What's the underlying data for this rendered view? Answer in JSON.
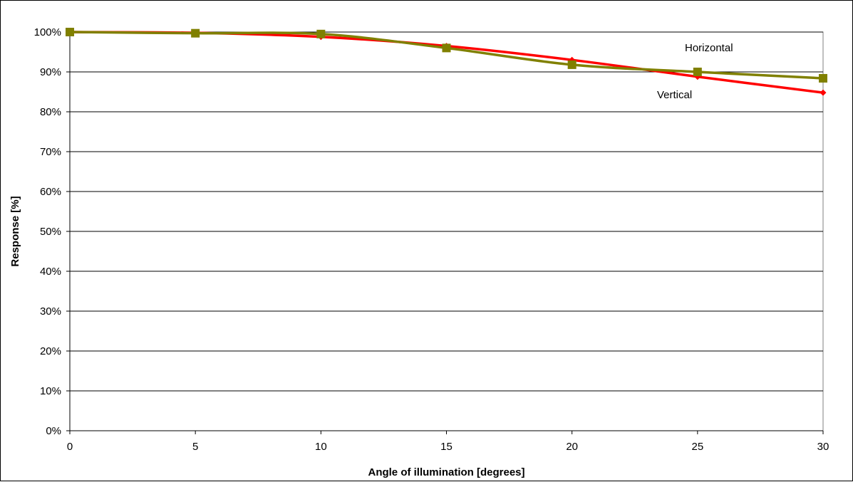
{
  "chart_data": {
    "type": "line",
    "xlabel": "Angle of illumination [degrees]",
    "ylabel": "Response [%]",
    "x": [
      0,
      5,
      10,
      15,
      20,
      25,
      30
    ],
    "xlim": [
      0,
      30
    ],
    "xticks": [
      "0",
      "5",
      "10",
      "15",
      "20",
      "25",
      "30"
    ],
    "ylim": [
      0,
      100
    ],
    "yticks": [
      "0%",
      "10%",
      "20%",
      "30%",
      "40%",
      "50%",
      "60%",
      "70%",
      "80%",
      "90%",
      "100%"
    ],
    "grid": "horizontal",
    "series": [
      {
        "name": "Vertical",
        "color": "#ff0000",
        "marker": "diamond",
        "values": [
          100,
          99.8,
          98.8,
          96.5,
          93,
          88.8,
          84.8
        ]
      },
      {
        "name": "Horizontal",
        "color": "#808000",
        "marker": "square",
        "values": [
          100,
          99.7,
          99.5,
          96,
          91.8,
          90,
          88.4
        ]
      }
    ],
    "annotations": [
      {
        "text": "Horizontal",
        "series": "Horizontal"
      },
      {
        "text": "Vertical",
        "series": "Vertical"
      }
    ]
  }
}
